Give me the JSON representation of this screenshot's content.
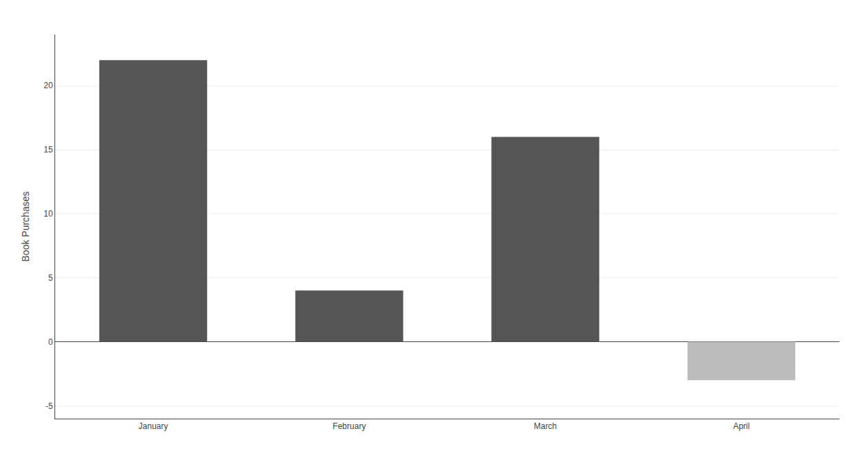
{
  "chart_data": {
    "type": "bar",
    "categories": [
      "January",
      "February",
      "March",
      "April"
    ],
    "values": [
      22,
      4,
      16,
      -3
    ],
    "colors": [
      "#555555",
      "#555555",
      "#555555",
      "#bbbbbb"
    ],
    "ylabel": "Book Purchases",
    "ylim": [
      -6,
      24
    ],
    "yticks": [
      -5,
      0,
      5,
      10,
      15,
      20
    ],
    "grid": true
  }
}
